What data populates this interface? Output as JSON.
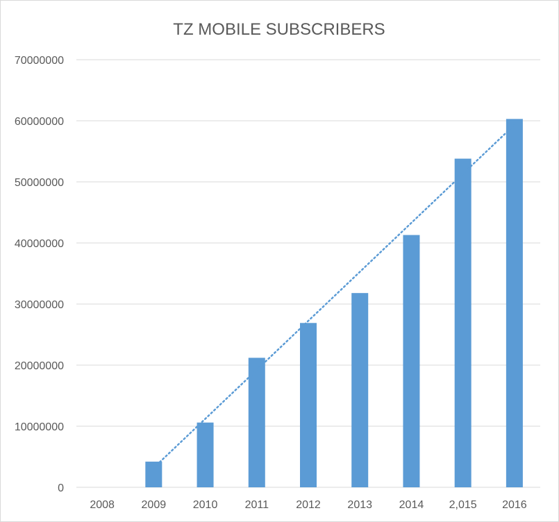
{
  "chart_data": {
    "type": "bar",
    "title": "TZ MOBILE SUBSCRIBERS",
    "xlabel": "",
    "ylabel": "",
    "categories": [
      "2008",
      "2009",
      "2010",
      "2011",
      "2012",
      "2013",
      "2014",
      "2,015",
      "2016"
    ],
    "y_ticks": [
      "0",
      "10000000",
      "20000000",
      "30000000",
      "40000000",
      "50000000",
      "60000000",
      "70000000"
    ],
    "ylim": [
      0,
      70000000
    ],
    "series": [
      {
        "values": [
          0,
          4200000,
          10600000,
          21200000,
          26900000,
          31800000,
          41300000,
          53800000,
          60300000
        ]
      }
    ],
    "trendline": {
      "type": "linear",
      "style": "dotted"
    },
    "grid": true,
    "legend": "none",
    "colors": {
      "bar": "#5b9bd5",
      "trendline": "#5b9bd5",
      "grid": "#d9d9d9",
      "text": "#595959"
    }
  }
}
